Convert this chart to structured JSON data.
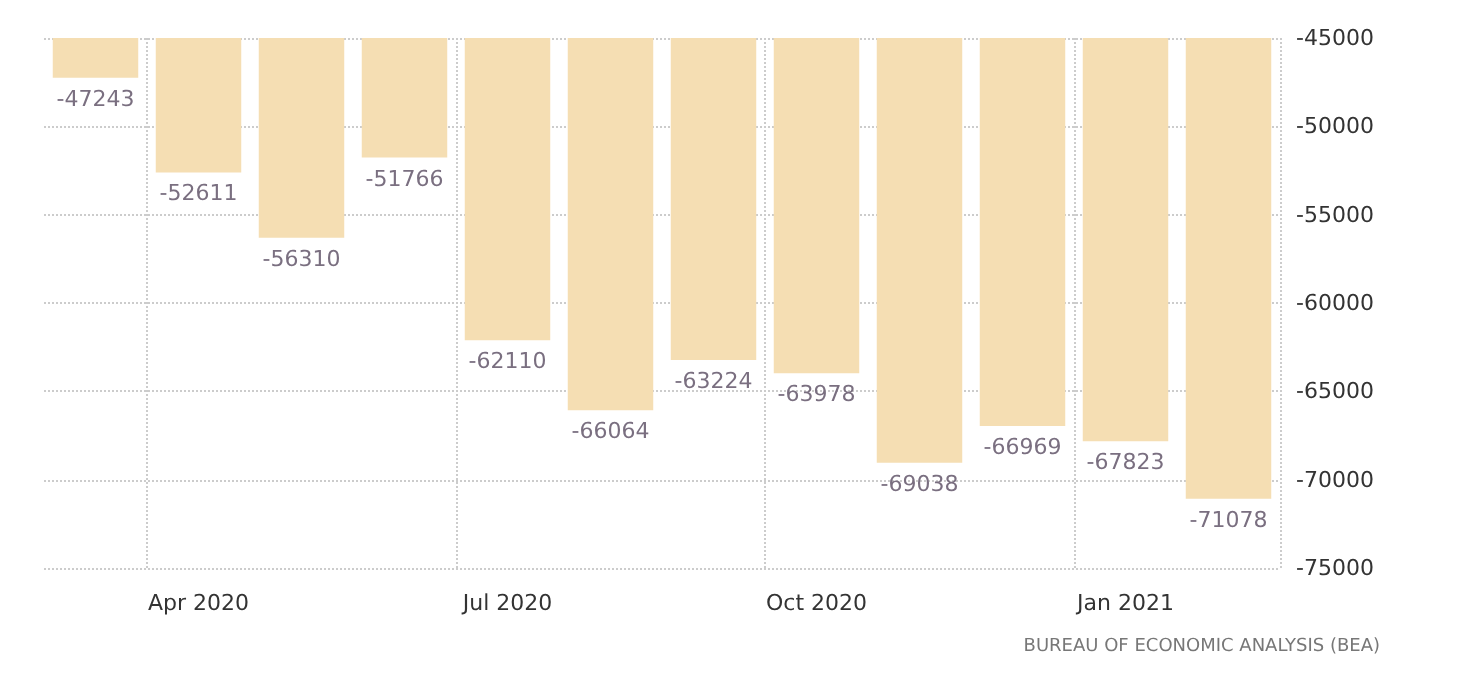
{
  "chart_data": {
    "type": "bar",
    "categories": [
      null,
      "Apr 2020",
      null,
      null,
      "Jul 2020",
      null,
      null,
      "Oct 2020",
      null,
      null,
      "Jan 2021",
      null
    ],
    "values": [
      -47243,
      -52611,
      -56310,
      -51766,
      -62110,
      -66064,
      -63224,
      -63978,
      -69038,
      -66969,
      -67823,
      -71078
    ],
    "color": "#f5deb3",
    "ylim": [
      -75000,
      -45000
    ],
    "yticks": [
      -75000,
      -70000,
      -65000,
      -60000,
      -55000,
      -50000,
      -45000
    ],
    "grid": true,
    "data_labels": true,
    "annotations": [
      "BUREAU OF ECONOMIC ANALYSIS (BEA)"
    ]
  }
}
